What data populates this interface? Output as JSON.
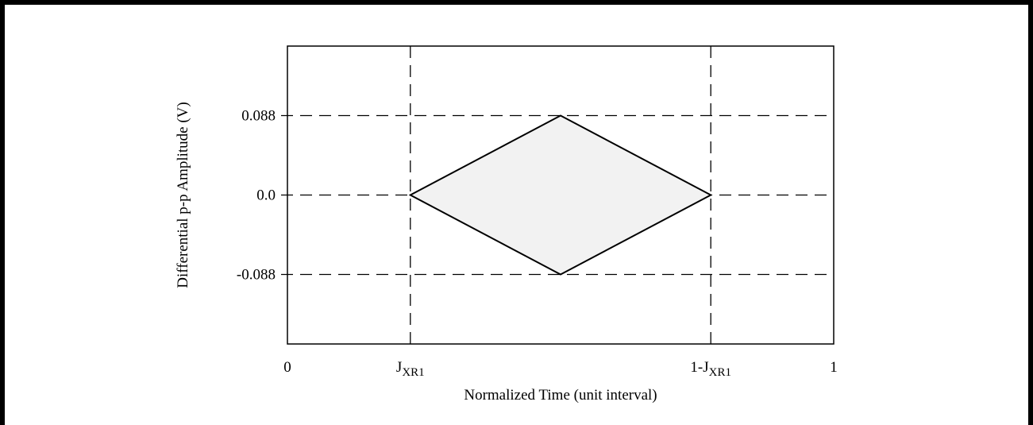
{
  "chart_data": {
    "type": "area",
    "title": "",
    "xlabel": "Normalized Time (unit interval)",
    "ylabel": "Differential p-p Amplitude (V)",
    "xlim": [
      0,
      1
    ],
    "ylim": [
      -0.165,
      0.165
    ],
    "grid": "dashed reference lines at ticks",
    "x_ticks": [
      {
        "value": 0,
        "label_main": "0",
        "label_sub": ""
      },
      {
        "value": 0.225,
        "label_main": "J",
        "label_sub": "XR1"
      },
      {
        "value": 0.775,
        "label_main": "1-J",
        "label_sub": "XR1"
      },
      {
        "value": 1,
        "label_main": "1",
        "label_sub": ""
      }
    ],
    "y_ticks": [
      {
        "value": 0.088,
        "label": "0.088"
      },
      {
        "value": 0.0,
        "label": "0.0"
      },
      {
        "value": -0.088,
        "label": "-0.088"
      }
    ],
    "series": [
      {
        "x": [
          0.225,
          0.5,
          0.775,
          0.5,
          0.225
        ],
        "y": [
          0.0,
          0.088,
          0.0,
          -0.088,
          0.0
        ],
        "fill": "#f2f2f2",
        "stroke": "#000000"
      }
    ]
  }
}
